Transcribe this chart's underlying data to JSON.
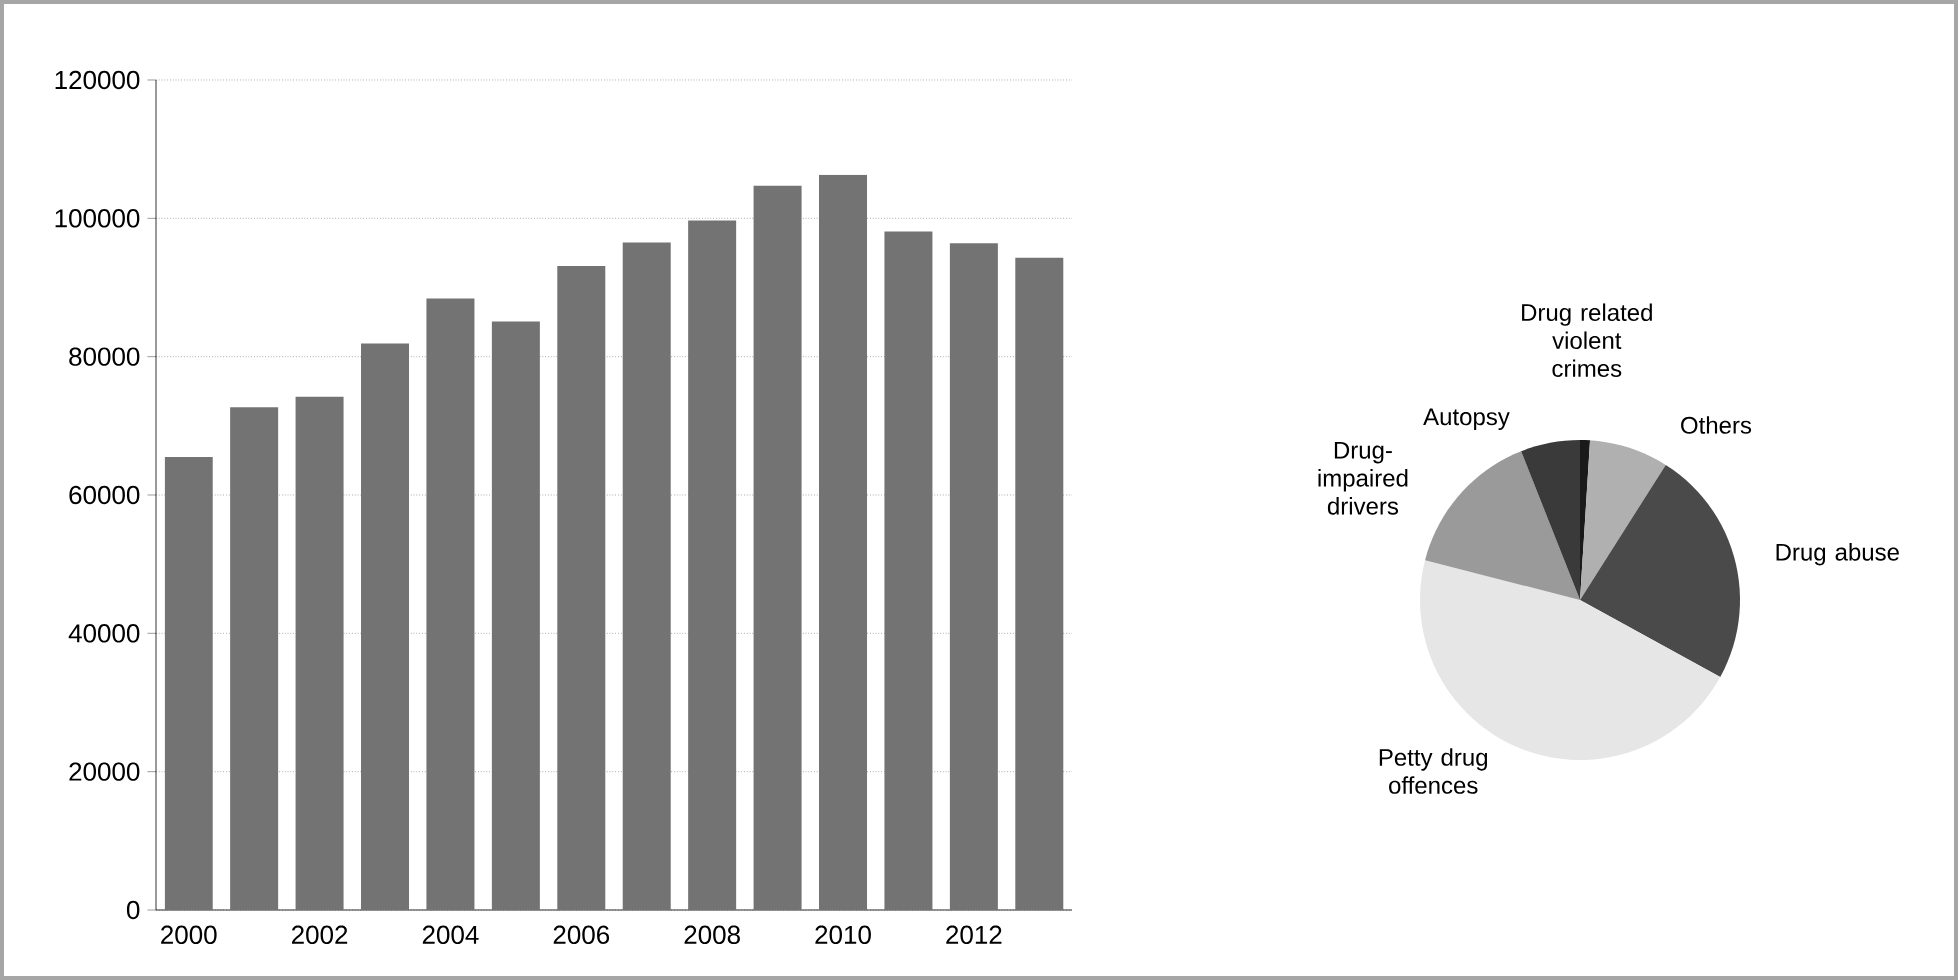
{
  "chart_data": [
    {
      "type": "bar",
      "categories": [
        "2000",
        null,
        "2002",
        null,
        "2004",
        null,
        "2006",
        null,
        "2008",
        null,
        "2010",
        null,
        "2012",
        null
      ],
      "values": [
        65500,
        72700,
        74200,
        81900,
        88400,
        85100,
        93100,
        96500,
        99700,
        104700,
        106300,
        98100,
        96400,
        94300
      ],
      "color": "#737373",
      "ylim": [
        0,
        120000
      ],
      "yticks": [
        0,
        20000,
        40000,
        60000,
        80000,
        100000,
        120000
      ],
      "grid": "y"
    },
    {
      "type": "pie",
      "categories": [
        "Drug related violent crimes",
        "Others",
        "Drug abuse",
        "Petty drug offences",
        "Drug-impaired drivers",
        "Autopsy"
      ],
      "values": [
        1,
        8,
        24,
        46,
        15,
        6
      ],
      "colors": [
        "#1a1a1a",
        "#b0b0b0",
        "#4a4a4a",
        "#e6e6e6",
        "#9a9a9a",
        "#3a3a3a"
      ]
    }
  ]
}
